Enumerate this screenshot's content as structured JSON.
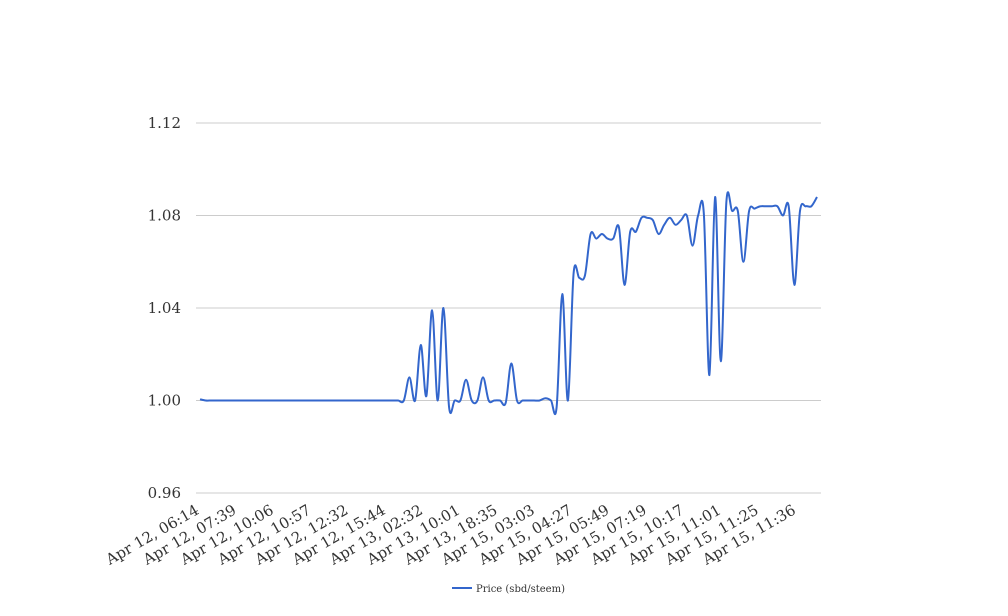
{
  "chart_data": {
    "type": "line",
    "title": "",
    "xlabel": "",
    "ylabel": "",
    "ylim": [
      0.96,
      1.12
    ],
    "y_ticks": [
      "0.96",
      "1.00",
      "1.04",
      "1.08",
      "1.12"
    ],
    "grid": "horizontal",
    "legend_position": "bottom",
    "x_tick_labels": [
      "Apr 12, 06:14",
      "Apr 12, 07:39",
      "Apr 12, 10:06",
      "Apr 12, 10:57",
      "Apr 12, 12:32",
      "Apr 12, 15:44",
      "Apr 13, 02:32",
      "Apr 13, 10:01",
      "Apr 13, 18:35",
      "Apr 15, 03:03",
      "Apr 15, 04:27",
      "Apr 15, 05:49",
      "Apr 15, 07:19",
      "Apr 15, 10:17",
      "Apr 15, 11:01",
      "Apr 15, 11:25",
      "Apr 15, 11:36"
    ],
    "series": [
      {
        "name": "Price (sbd/steem)",
        "color": "#3366cc",
        "values": [
          1.0005,
          1.0,
          1.0,
          1.0,
          1.0,
          1.0,
          1.0,
          1.0,
          1.0,
          1.0,
          1.0,
          1.0,
          1.0,
          1.0,
          1.0,
          1.0,
          1.0,
          1.0,
          1.0,
          1.0,
          1.0,
          1.0,
          1.0,
          1.0,
          1.0,
          1.0,
          1.0,
          1.0,
          1.0,
          1.0,
          1.0,
          1.0,
          1.0,
          1.0,
          1.0,
          1.0,
          1.0,
          1.01,
          1.0,
          1.024,
          1.002,
          1.039,
          1.0,
          1.04,
          0.997,
          1.0,
          1.0,
          1.009,
          1.0,
          1.0,
          1.01,
          1.0,
          1.0,
          1.0,
          0.999,
          1.016,
          1.0,
          1.0,
          1.0,
          1.0,
          1.0,
          1.001,
          1.0,
          0.997,
          1.046,
          1.0,
          1.055,
          1.053,
          1.054,
          1.072,
          1.07,
          1.072,
          1.07,
          1.07,
          1.075,
          1.05,
          1.073,
          1.073,
          1.079,
          1.079,
          1.078,
          1.072,
          1.076,
          1.079,
          1.076,
          1.078,
          1.08,
          1.067,
          1.08,
          1.081,
          1.011,
          1.088,
          1.017,
          1.086,
          1.082,
          1.082,
          1.06,
          1.082,
          1.083,
          1.084,
          1.084,
          1.084,
          1.084,
          1.08,
          1.084,
          1.05,
          1.082,
          1.084,
          1.084,
          1.088
        ]
      }
    ]
  }
}
